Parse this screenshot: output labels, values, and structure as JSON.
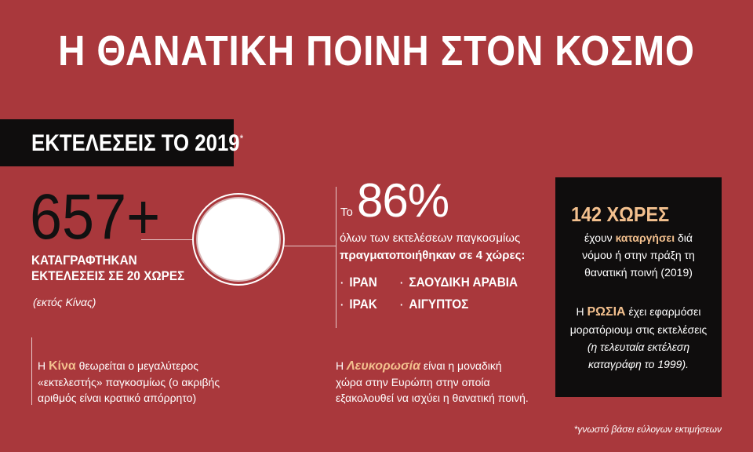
{
  "title": "Η ΘΑΝΑΤΙΚΗ ΠΟΙΝΗ ΣΤΟΝ ΚΟΣΜΟ",
  "banner": {
    "text": "ΕΚΤΕΛΕΣΕΙΣ ΤΟ 2019",
    "star": "*"
  },
  "executions": {
    "number": "657+",
    "line1": "ΚΑΤΑΓΡΑΦΤΗΚΑΝ",
    "line2": "ΕΚΤΕΛΕΣΕΙΣ ΣΕ 20 ΧΩΡΕΣ",
    "note": "(εκτός Κίνας)"
  },
  "china": {
    "prefix": "Η ",
    "highlight": "Κίνα",
    "line1_rest": " θεωρείται ο μεγαλύτερος",
    "line2": "«εκτελεστής» παγκοσμίως (ο ακριβής",
    "line3": "αριθμός είναι κρατικό απόρρητο)"
  },
  "share": {
    "to": "Το",
    "percent": "86%",
    "line1": "όλων των εκτελέσεων παγκοσμίως",
    "line2": "πραγματοποιήθηκαν σε 4 χώρες:",
    "bullet": "·",
    "countries": [
      "ΙΡΑΝ",
      "ΣΑΟΥΔΙΚΗ ΑΡΑΒΙΑ",
      "ΙΡΑΚ",
      "ΑΙΓΥΠΤΟΣ"
    ]
  },
  "belarus": {
    "prefix": "Η ",
    "highlight": "Λευκορωσία",
    "line1_rest": " είναι η μοναδική",
    "line2": "χώρα στην Ευρώπη στην οποία",
    "line3": "εξακολουθεί να ισχύει η θανατική ποινή."
  },
  "box": {
    "number": "142 ΧΩΡΕΣ",
    "l1_pre": "έχουν ",
    "l1_hl": "καταργήσει",
    "l1_post": " διά",
    "l2": "νόμου ή στην πράξη τη",
    "l3": "θανατική ποινή (2019)",
    "r_pre": "Η ",
    "r_hl": "ΡΩΣΙΑ",
    "r1_post": " έχει εφαρμόσει",
    "r2": "μορατόριουμ στις εκτελέσεις",
    "r3": "(η τελευταία εκτέλεση",
    "r4": "καταγράφη το 1999)."
  },
  "footnote": "*γνωστό βάσει εύλογων εκτιμήσεων",
  "colors": {
    "background": "#a9383c",
    "dark": "#0f0d0d",
    "accent": "#f3c08e"
  }
}
